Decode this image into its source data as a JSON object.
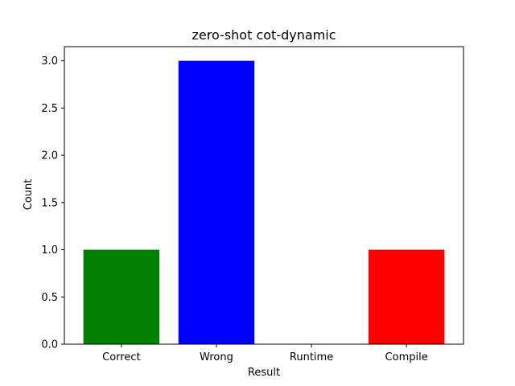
{
  "chart_data": {
    "type": "bar",
    "title": "zero-shot cot-dynamic",
    "xlabel": "Result",
    "ylabel": "Count",
    "categories": [
      "Correct",
      "Wrong",
      "Runtime",
      "Compile"
    ],
    "values": [
      1,
      3,
      0,
      1
    ],
    "colors": [
      "#008000",
      "#0000ff",
      "#ffa500",
      "#ff0000"
    ],
    "ylim": [
      0,
      3.15
    ],
    "yticks": [
      0.0,
      0.5,
      1.0,
      1.5,
      2.0,
      2.5,
      3.0
    ],
    "ytick_labels": [
      "0.0",
      "0.5",
      "1.0",
      "1.5",
      "2.0",
      "2.5",
      "3.0"
    ],
    "grid": false,
    "legend": "none"
  }
}
